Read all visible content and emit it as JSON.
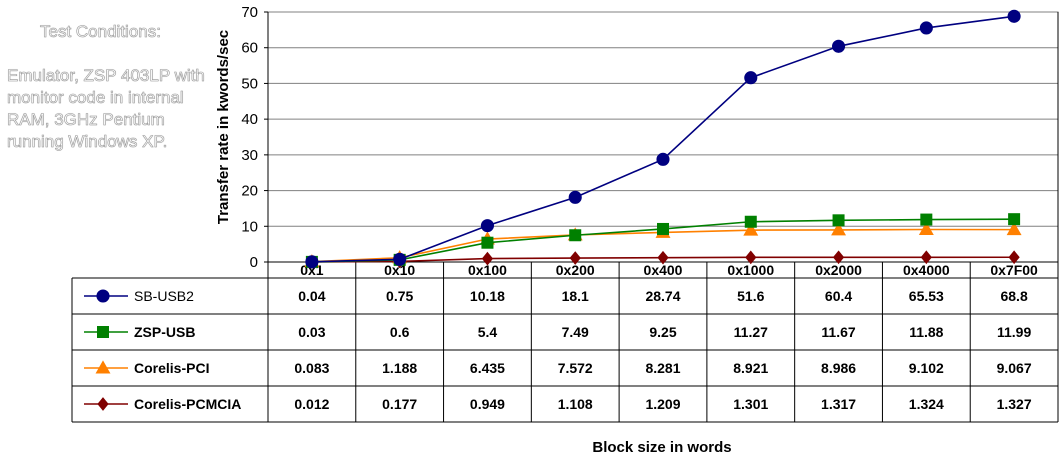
{
  "notes": {
    "title": "Test Conditions:",
    "body": "Emulator, ZSP 403LP with monitor code in internal RAM, 3GHz Pentium running Windows XP."
  },
  "chart_data": {
    "type": "line",
    "title": "",
    "xlabel": "Block size  in words",
    "ylabel": "Transfer rate in kwords/sec",
    "ylim": [
      0,
      70
    ],
    "yticks": [
      0,
      10,
      20,
      30,
      40,
      50,
      60,
      70
    ],
    "grid": true,
    "legend": "table-left",
    "categories": [
      "0x1",
      "0x10",
      "0x100",
      "0x200",
      "0x400",
      "0x1000",
      "0x2000",
      "0x4000",
      "0x7F00"
    ],
    "series": [
      {
        "name": "SB-USB2",
        "color": "#000080",
        "marker": "circle",
        "labels": [
          "0.04",
          "0.75",
          "10.18",
          "18.1",
          "28.74",
          "51.6",
          "60.4",
          "65.53",
          "68.8"
        ],
        "values": [
          0.04,
          0.75,
          10.18,
          18.1,
          28.74,
          51.6,
          60.4,
          65.53,
          68.8
        ]
      },
      {
        "name": "ZSP-USB",
        "color": "#008000",
        "marker": "square",
        "labels": [
          "0.03",
          "0.6",
          "5.4",
          "7.49",
          "9.25",
          "11.27",
          "11.67",
          "11.88",
          "11.99"
        ],
        "values": [
          0.03,
          0.6,
          5.4,
          7.49,
          9.25,
          11.27,
          11.67,
          11.88,
          11.99
        ]
      },
      {
        "name": "Corelis-PCI",
        "color": "#ff8000",
        "marker": "triangle",
        "labels": [
          "0.083",
          "1.188",
          "6.435",
          "7.572",
          "8.281",
          "8.921",
          "8.986",
          "9.102",
          "9.067"
        ],
        "values": [
          0.083,
          1.188,
          6.435,
          7.572,
          8.281,
          8.921,
          8.986,
          9.102,
          9.067
        ]
      },
      {
        "name": "Corelis-PCMCIA",
        "color": "#800000",
        "marker": "diamond",
        "labels": [
          "0.012",
          "0.177",
          "0.949",
          "1.108",
          "1.209",
          "1.301",
          "1.317",
          "1.324",
          "1.327"
        ],
        "values": [
          0.012,
          0.177,
          0.949,
          1.108,
          1.209,
          1.301,
          1.317,
          1.324,
          1.327
        ]
      }
    ]
  }
}
